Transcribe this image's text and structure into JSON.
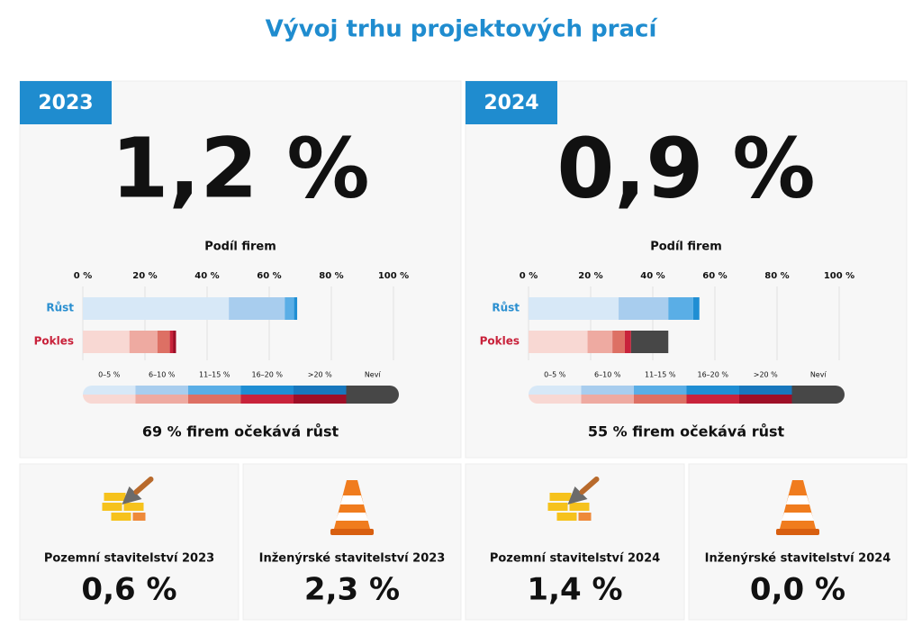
{
  "header": {
    "title": "Vývoj trhu projektových prací"
  },
  "panels": [
    {
      "year": "2023",
      "value": "1,2 %",
      "note": "69 % firem očekává růst"
    },
    {
      "year": "2024",
      "value": "0,9 %",
      "note": "55 % firem očekává růst"
    }
  ],
  "chart_data": [
    {
      "type": "bar",
      "orientation": "horizontal",
      "stacked": true,
      "title": "Podíl firem",
      "categories": [
        "Růst",
        "Pokles"
      ],
      "category_colors": [
        "#2a8fd0",
        "#c8213a"
      ],
      "xlim": [
        0,
        100
      ],
      "xticks": [
        {
          "value": 0,
          "label": "0 %"
        },
        {
          "value": 20,
          "label": "20 %"
        },
        {
          "value": 40,
          "label": "40 %"
        },
        {
          "value": 60,
          "label": "60 %"
        },
        {
          "value": 80,
          "label": "80 %"
        },
        {
          "value": 100,
          "label": "100 %"
        }
      ],
      "grid": true,
      "series": [
        {
          "name": "0–5 %",
          "colors": [
            "#d7e8f7",
            "#f8d8d3"
          ],
          "values": [
            47,
            15
          ]
        },
        {
          "name": "6–10 %",
          "colors": [
            "#a8cdee",
            "#eeaaa1"
          ],
          "values": [
            18,
            9
          ]
        },
        {
          "name": "11–15 %",
          "colors": [
            "#5aaee6",
            "#dd7064"
          ],
          "values": [
            3,
            4
          ]
        },
        {
          "name": "16–20 %",
          "colors": [
            "#1f8ed3",
            "#c8233b"
          ],
          "values": [
            1,
            1
          ]
        },
        {
          "name": ">20 %",
          "colors": [
            "#1877bd",
            "#9e0f27"
          ],
          "values": [
            0,
            1
          ]
        },
        {
          "name": "Neví",
          "colors": [
            "#474747",
            "#474747"
          ],
          "values": [
            0,
            0
          ]
        }
      ]
    },
    {
      "type": "bar",
      "orientation": "horizontal",
      "stacked": true,
      "title": "Podíl firem",
      "categories": [
        "Růst",
        "Pokles"
      ],
      "category_colors": [
        "#2a8fd0",
        "#c8213a"
      ],
      "xlim": [
        0,
        100
      ],
      "xticks": [
        {
          "value": 0,
          "label": "0 %"
        },
        {
          "value": 20,
          "label": "20 %"
        },
        {
          "value": 40,
          "label": "40 %"
        },
        {
          "value": 60,
          "label": "60 %"
        },
        {
          "value": 80,
          "label": "80 %"
        },
        {
          "value": 100,
          "label": "100 %"
        }
      ],
      "grid": true,
      "series": [
        {
          "name": "0–5 %",
          "colors": [
            "#d7e8f7",
            "#f8d8d3"
          ],
          "values": [
            29,
            19
          ]
        },
        {
          "name": "6–10 %",
          "colors": [
            "#a8cdee",
            "#eeaaa1"
          ],
          "values": [
            16,
            8
          ]
        },
        {
          "name": "11–15 %",
          "colors": [
            "#5aaee6",
            "#dd7064"
          ],
          "values": [
            8,
            4
          ]
        },
        {
          "name": "16–20 %",
          "colors": [
            "#1f8ed3",
            "#c8233b"
          ],
          "values": [
            2,
            2
          ]
        },
        {
          "name": ">20 %",
          "colors": [
            "#1877bd",
            "#9e0f27"
          ],
          "values": [
            0,
            0
          ]
        },
        {
          "name": "Neví",
          "colors": [
            "#474747",
            "#474747"
          ],
          "values": [
            0,
            12
          ]
        }
      ]
    }
  ],
  "cards": [
    {
      "label": "Pozemní stavitelství 2023",
      "value": "0,6 %"
    },
    {
      "label": "Inženýrské stavitelství 2023",
      "value": "2,3 %"
    },
    {
      "label": "Pozemní stavitelství 2024",
      "value": "1,4 %"
    },
    {
      "label": "Inženýrské stavitelství 2024",
      "value": "0,0 %"
    }
  ]
}
